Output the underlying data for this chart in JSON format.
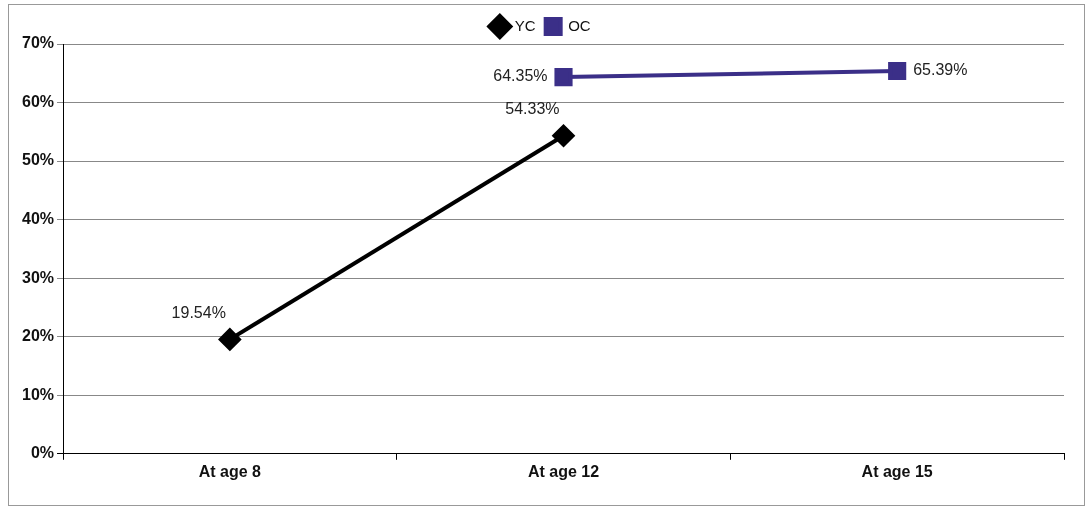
{
  "chart_data": {
    "type": "line",
    "categories": [
      "At age 8",
      "At age 12",
      "At age 15"
    ],
    "series": [
      {
        "name": "YC",
        "color": "#000000",
        "marker": "diamond",
        "values": [
          19.54,
          54.33,
          null
        ],
        "value_labels": [
          "19.54%",
          "54.33%",
          null
        ]
      },
      {
        "name": "OC",
        "color": "#3b2f88",
        "marker": "square",
        "values": [
          null,
          64.35,
          65.39
        ],
        "value_labels": [
          null,
          "64.35%",
          "65.39%"
        ]
      }
    ],
    "ylim": [
      0,
      70
    ],
    "yticks": [
      {
        "value": 0,
        "label": "0%"
      },
      {
        "value": 10,
        "label": "10%"
      },
      {
        "value": 20,
        "label": "20%"
      },
      {
        "value": 30,
        "label": "30%"
      },
      {
        "value": 40,
        "label": "40%"
      },
      {
        "value": 50,
        "label": "50%"
      },
      {
        "value": 60,
        "label": "60%"
      },
      {
        "value": 70,
        "label": "70%"
      }
    ],
    "grid": "y",
    "legend": "top",
    "line_style": "solid"
  }
}
